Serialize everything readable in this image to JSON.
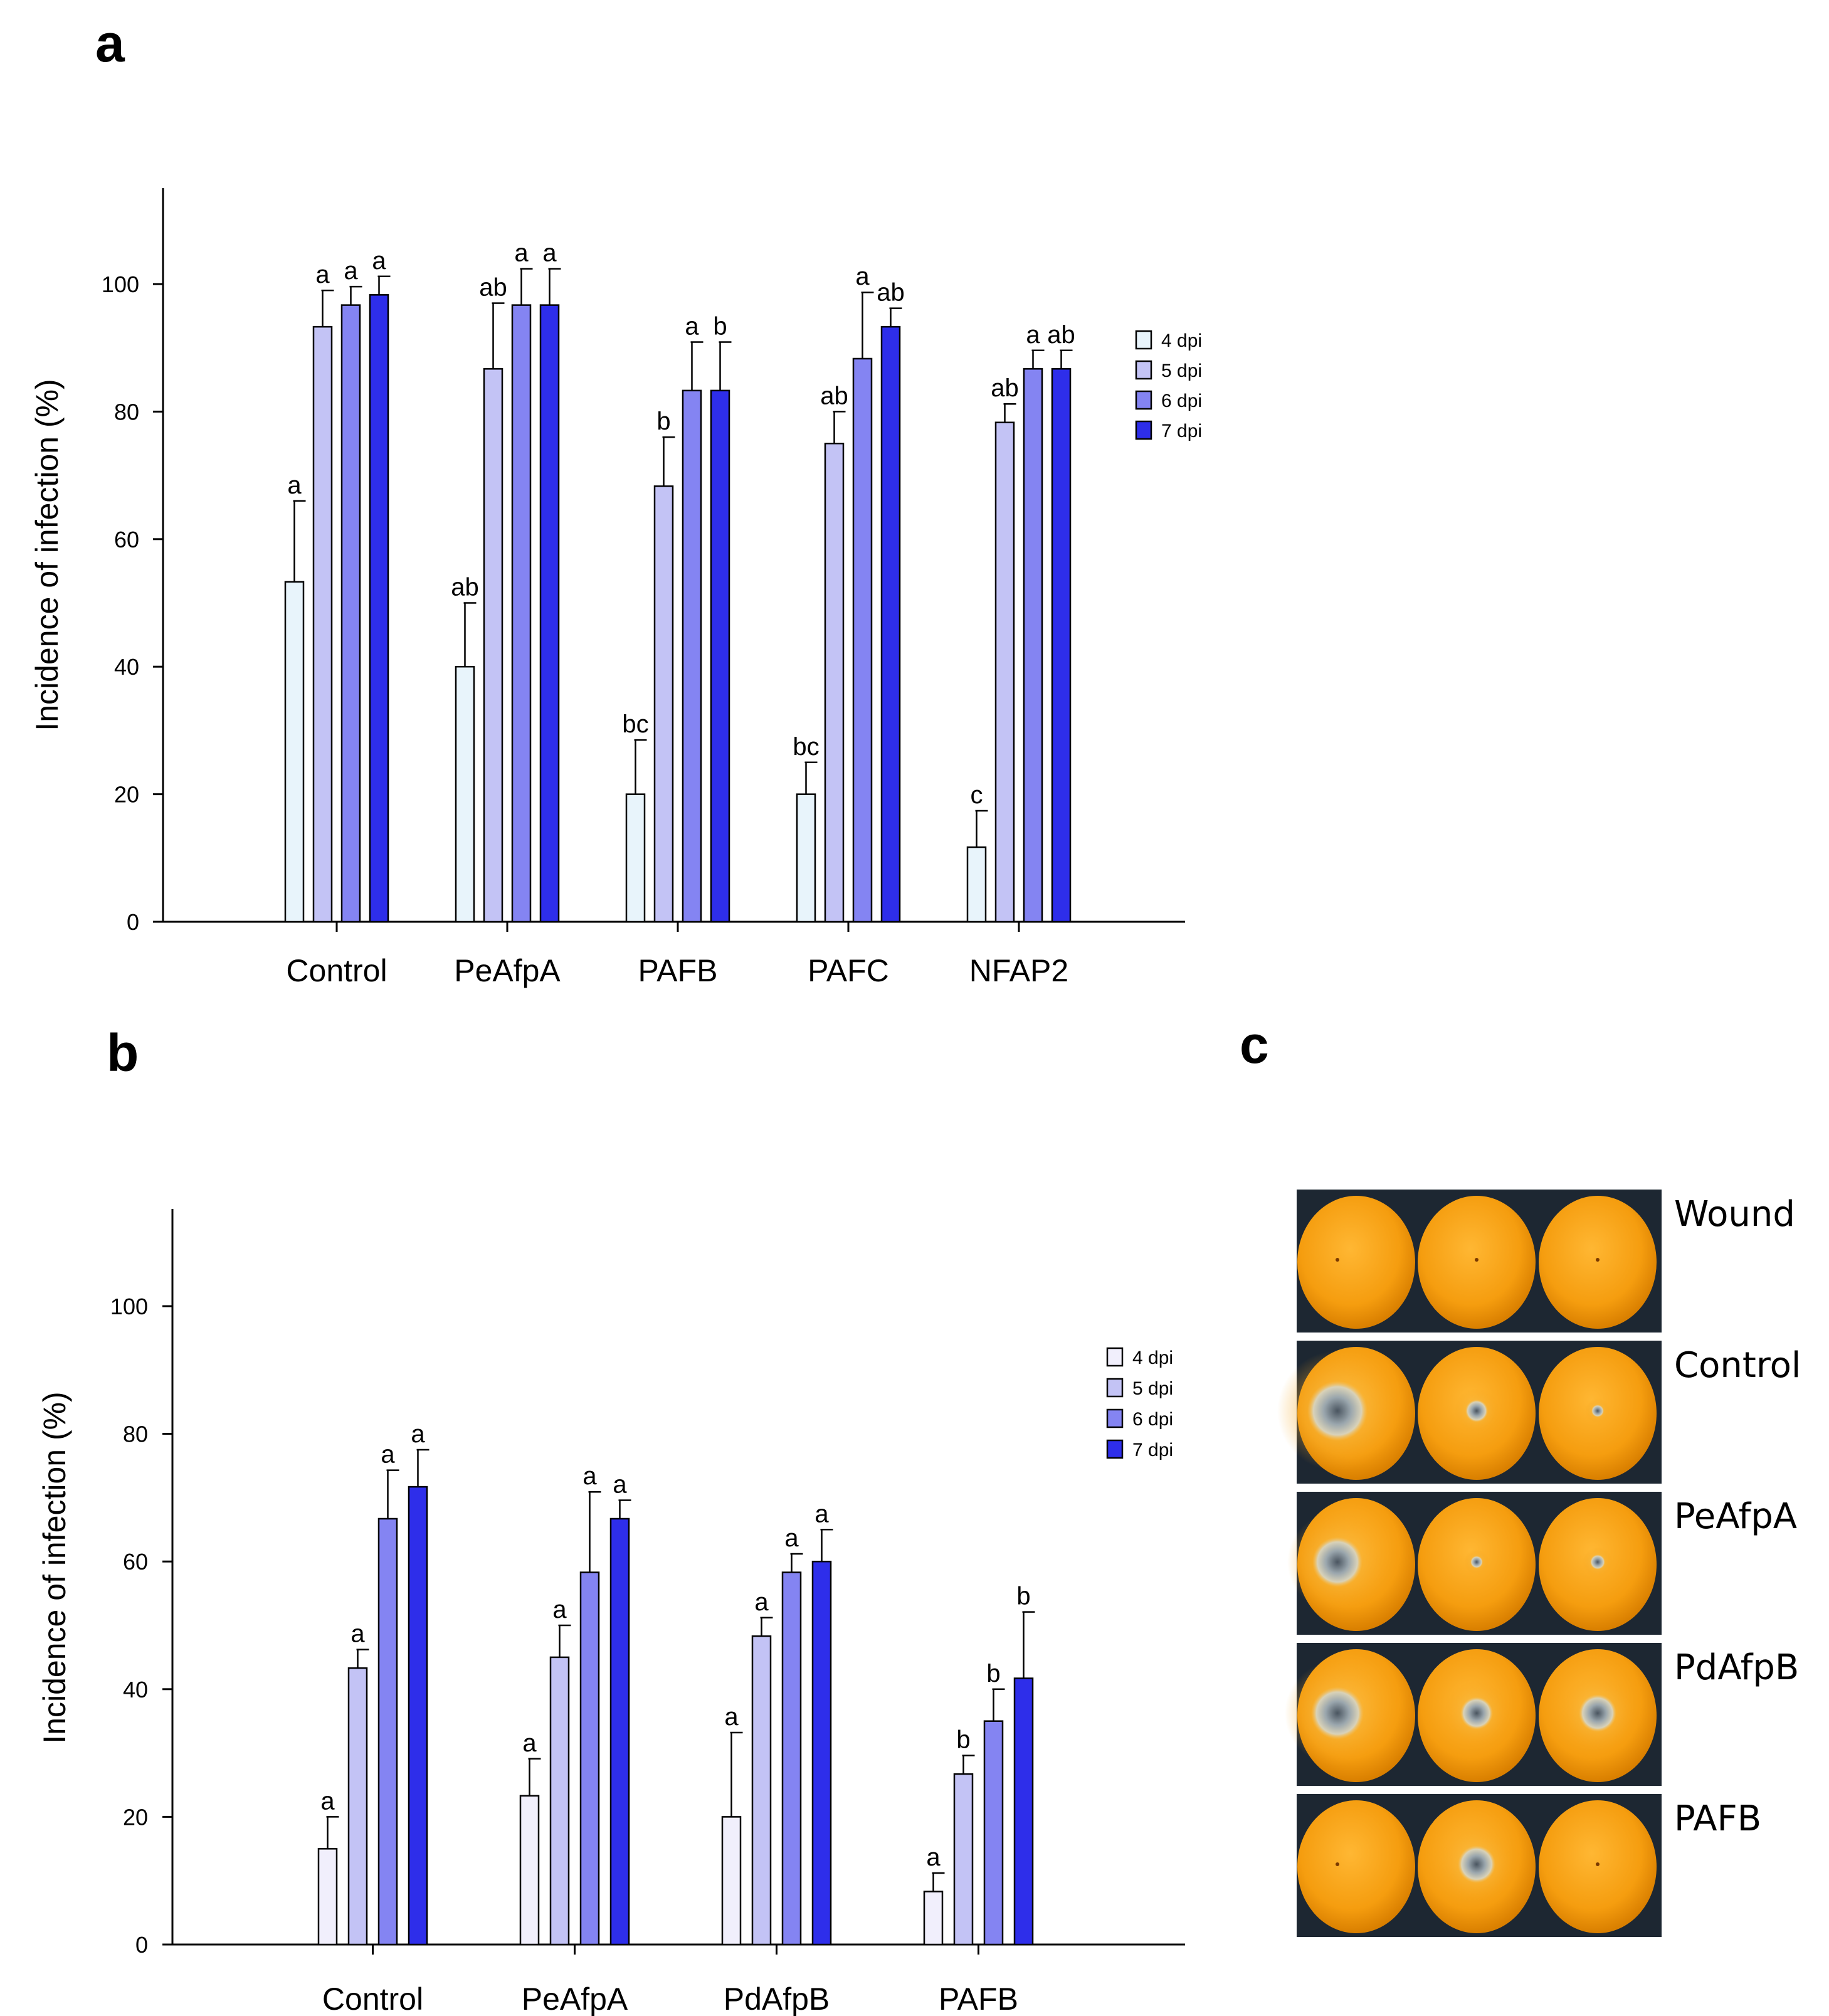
{
  "panels": [
    "a",
    "b",
    "c"
  ],
  "colors": {
    "dpi4_a": "#e8f4fb",
    "dpi5": "#c3c3f5",
    "dpi6": "#8484f2",
    "dpi7": "#2e2eea",
    "dpi4_b": "#f1effc"
  },
  "chart_data": [
    {
      "type": "bar",
      "panel": "a",
      "ylabel": "Incidence of infection (%)",
      "ylim": [
        0,
        115
      ],
      "yticks": [
        0,
        20,
        40,
        60,
        80,
        100
      ],
      "categories": [
        "Control",
        "PeAfpA",
        "PAFB",
        "PAFC",
        "NFAP2"
      ],
      "legend": [
        "4 dpi",
        "5 dpi",
        "6 dpi",
        "7 dpi"
      ],
      "series": [
        {
          "name": "4 dpi",
          "values": [
            53.3,
            40,
            20,
            20,
            11.7
          ],
          "errors": [
            12.7,
            10,
            8.5,
            5,
            5.7
          ],
          "labels": [
            "a",
            "ab",
            "bc",
            "bc",
            "c"
          ]
        },
        {
          "name": "5 dpi",
          "values": [
            93.3,
            86.7,
            68.3,
            75,
            78.3
          ],
          "errors": [
            5.7,
            10.3,
            7.7,
            5,
            2.9
          ],
          "labels": [
            "a",
            "ab",
            "b",
            "ab",
            "ab"
          ]
        },
        {
          "name": "6 dpi",
          "values": [
            96.7,
            96.7,
            83.3,
            88.3,
            86.7
          ],
          "errors": [
            2.9,
            5.7,
            7.6,
            10.4,
            2.9
          ],
          "labels": [
            "a",
            "a",
            "a",
            "a",
            "a"
          ]
        },
        {
          "name": "7 dpi",
          "values": [
            98.3,
            96.7,
            83.3,
            93.3,
            86.7
          ],
          "errors": [
            2.9,
            5.7,
            7.6,
            2.9,
            2.9
          ],
          "labels": [
            "a",
            "a",
            "b",
            "ab",
            "ab"
          ]
        }
      ]
    },
    {
      "type": "bar",
      "panel": "b",
      "ylabel": "Incidence of infection (%)",
      "ylim": [
        0,
        115
      ],
      "yticks": [
        0,
        20,
        40,
        60,
        80,
        100
      ],
      "categories": [
        "Control",
        "PeAfpA",
        "PdAfpB",
        "PAFB"
      ],
      "legend": [
        "4 dpi",
        "5 dpi",
        "6 dpi",
        "7 dpi"
      ],
      "series": [
        {
          "name": "4 dpi",
          "values": [
            15,
            23.3,
            20,
            8.3
          ],
          "errors": [
            5,
            5.8,
            13.2,
            2.9
          ],
          "labels": [
            "a",
            "a",
            "a",
            "a"
          ]
        },
        {
          "name": "5 dpi",
          "values": [
            43.3,
            45,
            48.3,
            26.7
          ],
          "errors": [
            2.9,
            5,
            2.9,
            2.9
          ],
          "labels": [
            "a",
            "a",
            "a",
            "b"
          ]
        },
        {
          "name": "6 dpi",
          "values": [
            66.7,
            58.3,
            58.3,
            35
          ],
          "errors": [
            7.6,
            12.6,
            2.9,
            5
          ],
          "labels": [
            "a",
            "a",
            "a",
            "b"
          ]
        },
        {
          "name": "7 dpi",
          "values": [
            71.7,
            66.7,
            60,
            41.7
          ],
          "errors": [
            5.8,
            2.9,
            5,
            10.4
          ],
          "labels": [
            "a",
            "a",
            "a",
            "b"
          ]
        }
      ]
    }
  ],
  "photo_panel": {
    "rows": [
      "Wound",
      "Control",
      "PeAfpA",
      "PdAfpB",
      "PAFB"
    ]
  }
}
